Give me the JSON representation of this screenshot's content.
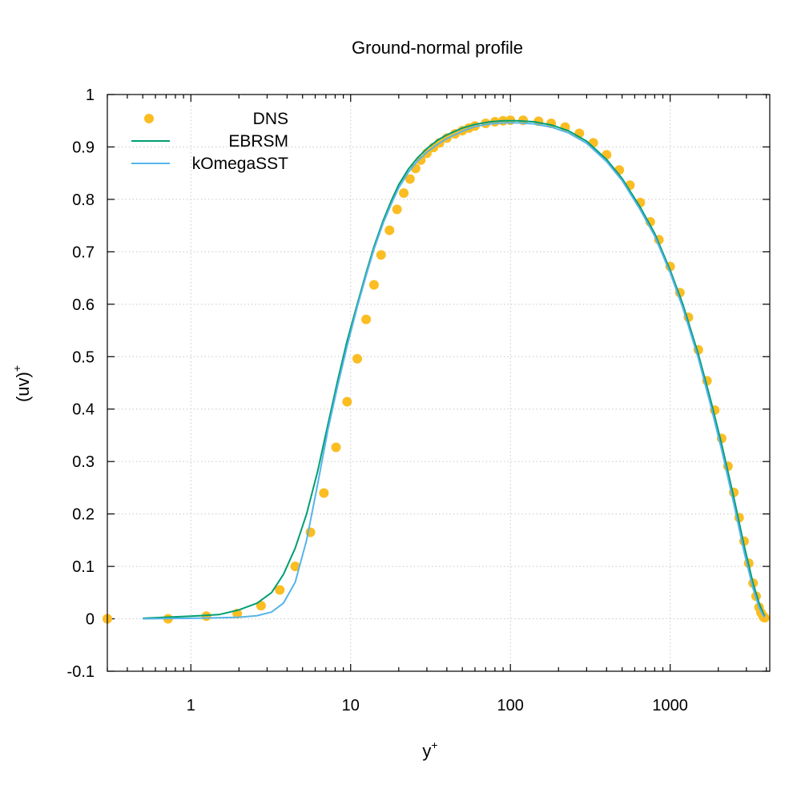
{
  "chart_data": {
    "type": "line",
    "title": "Ground-normal profile",
    "xlabel": "y",
    "xlabel_sup": "+",
    "ylabel": "(uv)",
    "ylabel_sup": "+",
    "xscale": "log",
    "xlim": [
      0.3,
      4200
    ],
    "ylim": [
      -0.1,
      1.0
    ],
    "xticks": [
      {
        "value": 1,
        "label": "1"
      },
      {
        "value": 10,
        "label": "10"
      },
      {
        "value": 100,
        "label": "100"
      },
      {
        "value": 1000,
        "label": "1000"
      }
    ],
    "yticks": [
      {
        "value": -0.1,
        "label": "-0.1"
      },
      {
        "value": 0,
        "label": "0"
      },
      {
        "value": 0.1,
        "label": "0.1"
      },
      {
        "value": 0.2,
        "label": "0.2"
      },
      {
        "value": 0.3,
        "label": "0.3"
      },
      {
        "value": 0.4,
        "label": "0.4"
      },
      {
        "value": 0.5,
        "label": "0.5"
      },
      {
        "value": 0.6,
        "label": "0.6"
      },
      {
        "value": 0.7,
        "label": "0.7"
      },
      {
        "value": 0.8,
        "label": "0.8"
      },
      {
        "value": 0.9,
        "label": "0.9"
      },
      {
        "value": 1.0,
        "label": "1"
      }
    ],
    "grid": true,
    "legend_position": "top-left",
    "series": [
      {
        "name": "DNS",
        "style": "points",
        "color": "#FBBD22",
        "x": [
          0.3,
          0.72,
          1.25,
          1.95,
          2.75,
          3.6,
          4.5,
          5.6,
          6.8,
          8.1,
          9.5,
          11.0,
          12.5,
          14.0,
          15.5,
          17.5,
          19.5,
          21.5,
          23.5,
          25.5,
          27.5,
          30,
          33,
          36,
          40,
          45,
          50,
          55,
          60,
          70,
          80,
          90,
          100,
          120,
          150,
          180,
          220,
          270,
          330,
          400,
          480,
          560,
          650,
          750,
          850,
          1000,
          1150,
          1300,
          1500,
          1700,
          1900,
          2100,
          2300,
          2500,
          2700,
          2900,
          3100,
          3300,
          3450,
          3600,
          3700,
          3800,
          3850,
          3900
        ],
        "y": [
          0.0,
          0.0,
          0.005,
          0.01,
          0.025,
          0.055,
          0.1,
          0.165,
          0.24,
          0.327,
          0.414,
          0.496,
          0.571,
          0.637,
          0.694,
          0.741,
          0.781,
          0.812,
          0.839,
          0.859,
          0.875,
          0.888,
          0.899,
          0.908,
          0.917,
          0.925,
          0.931,
          0.936,
          0.94,
          0.945,
          0.948,
          0.95,
          0.951,
          0.951,
          0.949,
          0.945,
          0.938,
          0.926,
          0.908,
          0.885,
          0.856,
          0.827,
          0.794,
          0.757,
          0.723,
          0.672,
          0.622,
          0.575,
          0.513,
          0.454,
          0.398,
          0.344,
          0.291,
          0.241,
          0.193,
          0.148,
          0.106,
          0.068,
          0.043,
          0.022,
          0.012,
          0.006,
          0.003,
          0.002
        ]
      },
      {
        "name": "EBRSM",
        "style": "line",
        "color": "#009E73",
        "x": [
          0.5,
          1.0,
          1.5,
          2.0,
          2.6,
          3.2,
          3.8,
          4.5,
          5.3,
          6.2,
          7.2,
          8.3,
          9.5,
          11.0,
          12.5,
          14.0,
          16.0,
          18.0,
          20.0,
          23.0,
          26.0,
          30.0,
          35.0,
          40.0,
          50.0,
          60.0,
          75.0,
          90.0,
          110.0,
          140.0,
          180.0,
          230.0,
          300.0,
          400.0,
          500.0,
          650.0,
          800.0,
          1000.0,
          1200.0,
          1500.0,
          1800.0,
          2100.0,
          2500.0,
          2900.0,
          3300.0,
          3600.0,
          3800.0,
          3900.0
        ],
        "y": [
          0.001,
          0.005,
          0.008,
          0.017,
          0.03,
          0.05,
          0.085,
          0.135,
          0.2,
          0.28,
          0.37,
          0.455,
          0.53,
          0.6,
          0.66,
          0.71,
          0.76,
          0.798,
          0.828,
          0.858,
          0.878,
          0.897,
          0.913,
          0.923,
          0.936,
          0.943,
          0.948,
          0.95,
          0.95,
          0.948,
          0.942,
          0.931,
          0.911,
          0.876,
          0.84,
          0.785,
          0.735,
          0.665,
          0.6,
          0.505,
          0.415,
          0.333,
          0.232,
          0.14,
          0.068,
          0.03,
          0.012,
          0.005
        ]
      },
      {
        "name": "kOmegaSST",
        "style": "line",
        "color": "#56B4E9",
        "x": [
          0.5,
          1.0,
          1.5,
          2.0,
          2.6,
          3.2,
          3.8,
          4.5,
          5.3,
          6.2,
          7.2,
          8.3,
          9.5,
          11.0,
          12.5,
          14.0,
          16.0,
          18.0,
          20.0,
          23.0,
          26.0,
          30.0,
          35.0,
          40.0,
          50.0,
          60.0,
          75.0,
          90.0,
          110.0,
          140.0,
          180.0,
          230.0,
          300.0,
          400.0,
          500.0,
          650.0,
          800.0,
          1000.0,
          1200.0,
          1500.0,
          1800.0,
          2100.0,
          2500.0,
          2900.0,
          3300.0,
          3600.0,
          3800.0,
          3900.0
        ],
        "y": [
          0.0,
          0.001,
          0.002,
          0.003,
          0.006,
          0.013,
          0.03,
          0.07,
          0.15,
          0.255,
          0.36,
          0.445,
          0.52,
          0.595,
          0.655,
          0.705,
          0.755,
          0.792,
          0.822,
          0.852,
          0.872,
          0.89,
          0.905,
          0.916,
          0.93,
          0.939,
          0.944,
          0.946,
          0.946,
          0.944,
          0.938,
          0.927,
          0.907,
          0.872,
          0.836,
          0.78,
          0.73,
          0.66,
          0.593,
          0.497,
          0.405,
          0.322,
          0.22,
          0.128,
          0.058,
          0.022,
          0.008,
          0.003
        ]
      }
    ]
  }
}
